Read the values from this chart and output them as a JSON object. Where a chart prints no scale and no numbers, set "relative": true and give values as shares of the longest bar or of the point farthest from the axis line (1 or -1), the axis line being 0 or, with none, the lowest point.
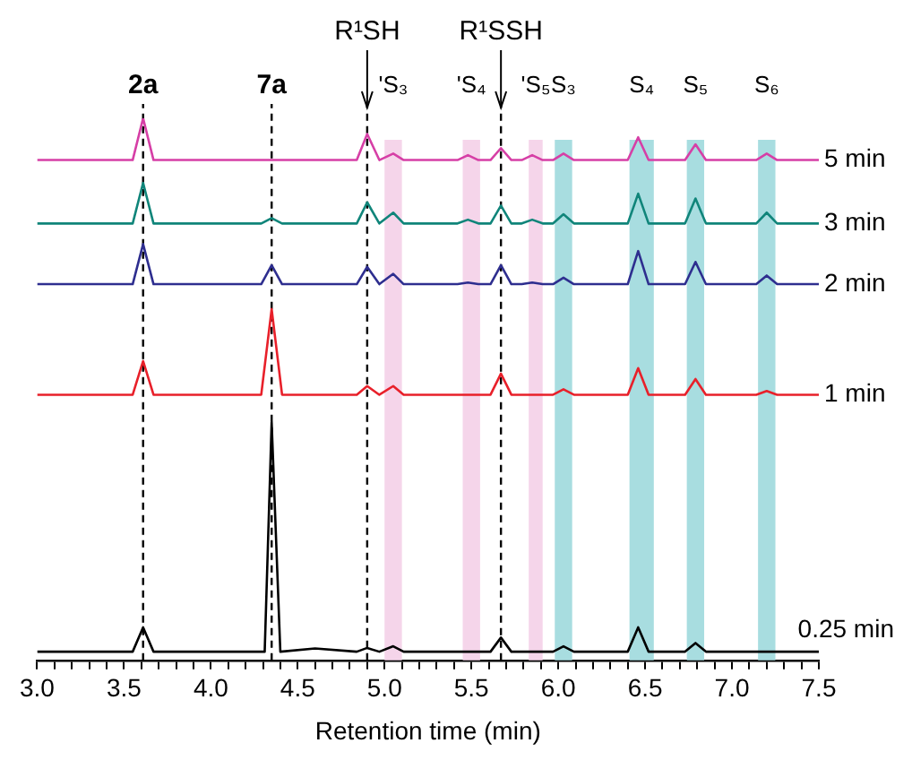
{
  "chart_data": {
    "type": "line",
    "relative": true,
    "xlabel": "Retention time (min)",
    "xlim": [
      3,
      7.5
    ],
    "xticks": [
      {
        "value": 3,
        "label": "3.0"
      },
      {
        "value": 3.1,
        "label": null
      },
      {
        "value": 3.2,
        "label": null
      },
      {
        "value": 3.3,
        "label": null
      },
      {
        "value": 3.4,
        "label": null
      },
      {
        "value": 3.5,
        "label": "3.5"
      },
      {
        "value": 3.6,
        "label": null
      },
      {
        "value": 3.7,
        "label": null
      },
      {
        "value": 3.8,
        "label": null
      },
      {
        "value": 3.9,
        "label": null
      },
      {
        "value": 4,
        "label": "4.0"
      },
      {
        "value": 4.1,
        "label": null
      },
      {
        "value": 4.2,
        "label": null
      },
      {
        "value": 4.3,
        "label": null
      },
      {
        "value": 4.4,
        "label": null
      },
      {
        "value": 4.5,
        "label": "4.5"
      },
      {
        "value": 4.6,
        "label": null
      },
      {
        "value": 4.7,
        "label": null
      },
      {
        "value": 4.8,
        "label": null
      },
      {
        "value": 4.9,
        "label": null
      },
      {
        "value": 5,
        "label": "5.0"
      },
      {
        "value": 5.1,
        "label": null
      },
      {
        "value": 5.2,
        "label": null
      },
      {
        "value": 5.3,
        "label": null
      },
      {
        "value": 5.4,
        "label": null
      },
      {
        "value": 5.5,
        "label": "5.5"
      },
      {
        "value": 5.6,
        "label": null
      },
      {
        "value": 5.7,
        "label": null
      },
      {
        "value": 5.8,
        "label": null
      },
      {
        "value": 5.9,
        "label": null
      },
      {
        "value": 6,
        "label": "6.0"
      },
      {
        "value": 6.1,
        "label": null
      },
      {
        "value": 6.2,
        "label": null
      },
      {
        "value": 6.3,
        "label": null
      },
      {
        "value": 6.4,
        "label": null
      },
      {
        "value": 6.5,
        "label": "6.5"
      },
      {
        "value": 6.6,
        "label": null
      },
      {
        "value": 6.7,
        "label": null
      },
      {
        "value": 6.8,
        "label": null
      },
      {
        "value": 6.9,
        "label": null
      },
      {
        "value": 7,
        "label": "7.0"
      },
      {
        "value": 7.1,
        "label": null
      },
      {
        "value": 7.2,
        "label": null
      },
      {
        "value": 7.3,
        "label": null
      },
      {
        "value": 7.4,
        "label": null
      },
      {
        "value": 7.5,
        "label": "7.5"
      }
    ],
    "series": [
      {
        "name": "5 min",
        "color": "#d63fa6",
        "x": [
          3.0,
          3.55,
          3.61,
          3.67,
          4.84,
          4.9,
          4.97,
          5.05,
          5.11,
          5.42,
          5.48,
          5.54,
          5.61,
          5.67,
          5.73,
          5.79,
          5.85,
          5.91,
          5.97,
          6.03,
          6.09,
          6.4,
          6.46,
          6.52,
          6.73,
          6.79,
          6.85,
          7.14,
          7.2,
          7.26,
          7.5
        ],
        "values": [
          0.923,
          0.923,
          1.0,
          0.923,
          0.923,
          0.971,
          0.923,
          0.935,
          0.923,
          0.923,
          0.932,
          0.923,
          0.923,
          0.945,
          0.923,
          0.923,
          0.932,
          0.923,
          0.923,
          0.935,
          0.923,
          0.923,
          0.965,
          0.923,
          0.923,
          0.952,
          0.923,
          0.923,
          0.935,
          0.923,
          0.923
        ]
      },
      {
        "name": "3 min",
        "color": "#10857a",
        "x": [
          3.0,
          3.55,
          3.61,
          3.67,
          4.29,
          4.35,
          4.41,
          4.84,
          4.9,
          4.97,
          5.05,
          5.11,
          5.42,
          5.48,
          5.54,
          5.61,
          5.67,
          5.73,
          5.79,
          5.85,
          5.91,
          5.97,
          6.03,
          6.09,
          6.4,
          6.46,
          6.52,
          6.73,
          6.79,
          6.85,
          7.14,
          7.2,
          7.26,
          7.5
        ],
        "values": [
          0.806,
          0.806,
          0.881,
          0.806,
          0.806,
          0.816,
          0.806,
          0.806,
          0.845,
          0.806,
          0.826,
          0.806,
          0.806,
          0.813,
          0.806,
          0.806,
          0.839,
          0.806,
          0.806,
          0.813,
          0.806,
          0.806,
          0.823,
          0.806,
          0.806,
          0.861,
          0.806,
          0.806,
          0.852,
          0.806,
          0.806,
          0.826,
          0.806,
          0.806
        ]
      },
      {
        "name": "2 min",
        "color": "#2e2e8f",
        "x": [
          3.0,
          3.55,
          3.61,
          3.67,
          4.29,
          4.35,
          4.41,
          4.84,
          4.9,
          4.97,
          5.05,
          5.11,
          5.42,
          5.48,
          5.54,
          5.61,
          5.67,
          5.73,
          5.79,
          5.85,
          5.91,
          5.97,
          6.03,
          6.09,
          6.4,
          6.46,
          6.52,
          6.73,
          6.79,
          6.85,
          7.14,
          7.2,
          7.26,
          7.5
        ],
        "values": [
          0.694,
          0.694,
          0.768,
          0.694,
          0.694,
          0.729,
          0.694,
          0.694,
          0.726,
          0.694,
          0.713,
          0.694,
          0.694,
          0.697,
          0.694,
          0.694,
          0.729,
          0.694,
          0.694,
          0.697,
          0.694,
          0.694,
          0.706,
          0.694,
          0.694,
          0.755,
          0.694,
          0.694,
          0.735,
          0.694,
          0.694,
          0.71,
          0.694,
          0.694
        ]
      },
      {
        "name": "1 min",
        "color": "#e8202a",
        "x": [
          3.0,
          3.55,
          3.61,
          3.67,
          4.29,
          4.35,
          4.41,
          4.84,
          4.9,
          4.97,
          5.05,
          5.11,
          5.61,
          5.67,
          5.73,
          5.97,
          6.03,
          6.09,
          6.4,
          6.46,
          6.52,
          6.73,
          6.79,
          6.85,
          7.14,
          7.2,
          7.26,
          7.5
        ],
        "values": [
          0.49,
          0.49,
          0.552,
          0.49,
          0.49,
          0.648,
          0.49,
          0.49,
          0.506,
          0.49,
          0.506,
          0.49,
          0.49,
          0.529,
          0.49,
          0.49,
          0.5,
          0.49,
          0.49,
          0.539,
          0.49,
          0.49,
          0.519,
          0.49,
          0.49,
          0.497,
          0.49,
          0.49
        ]
      },
      {
        "name": "0.25 min",
        "color": "#000000",
        "x": [
          3.0,
          3.55,
          3.61,
          3.67,
          4.31,
          4.35,
          4.4,
          4.6,
          4.84,
          4.9,
          4.97,
          5.05,
          5.11,
          5.61,
          5.67,
          5.73,
          5.97,
          6.03,
          6.09,
          6.4,
          6.46,
          6.52,
          6.73,
          6.79,
          6.85,
          7.5
        ],
        "values": [
          0.016,
          0.016,
          0.061,
          0.016,
          0.016,
          0.439,
          0.016,
          0.022,
          0.016,
          0.023,
          0.016,
          0.026,
          0.016,
          0.016,
          0.042,
          0.016,
          0.016,
          0.026,
          0.016,
          0.016,
          0.061,
          0.016,
          0.016,
          0.032,
          0.016,
          0.016
        ]
      }
    ],
    "ref_lines": [
      {
        "axis": "x",
        "value": 3.61,
        "label": "2a",
        "line_style": "dashed",
        "color": "#000000"
      },
      {
        "axis": "x",
        "value": 4.35,
        "label": "7a",
        "line_style": "dashed",
        "color": "#000000"
      },
      {
        "axis": "x",
        "value": 4.9,
        "label": "R¹SH",
        "line_style": "dashed",
        "color": "#000000"
      },
      {
        "axis": "x",
        "value": 5.67,
        "label": "R¹SSH",
        "line_style": "dashed",
        "color": "#000000"
      }
    ],
    "bands": [
      {
        "axis": "x",
        "from": 5.0,
        "to": 5.1,
        "label": "'S₃",
        "color": "#f5d5ea"
      },
      {
        "axis": "x",
        "from": 5.45,
        "to": 5.55,
        "label": "'S₄",
        "color": "#f5d5ea"
      },
      {
        "axis": "x",
        "from": 5.83,
        "to": 5.91,
        "label": "'S₅",
        "color": "#f5d5ea"
      },
      {
        "axis": "x",
        "from": 5.98,
        "to": 6.08,
        "label": "S₃",
        "color": "#a8dde0"
      },
      {
        "axis": "x",
        "from": 6.41,
        "to": 6.55,
        "label": "S₄",
        "color": "#a8dde0"
      },
      {
        "axis": "x",
        "from": 6.74,
        "to": 6.84,
        "label": "S₅",
        "color": "#a8dde0"
      },
      {
        "axis": "x",
        "from": 7.15,
        "to": 7.25,
        "label": "S₆",
        "color": "#a8dde0"
      }
    ],
    "legend": false,
    "grid": false
  }
}
